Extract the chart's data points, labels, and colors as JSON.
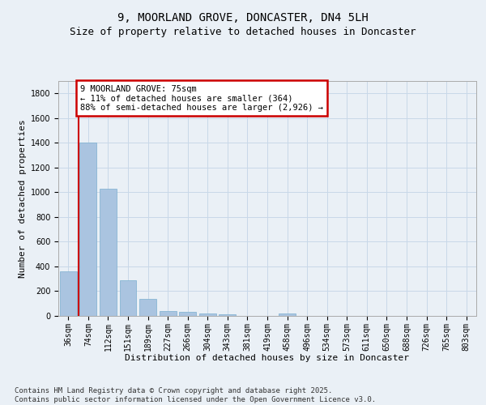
{
  "title_line1": "9, MOORLAND GROVE, DONCASTER, DN4 5LH",
  "title_line2": "Size of property relative to detached houses in Doncaster",
  "xlabel": "Distribution of detached houses by size in Doncaster",
  "ylabel": "Number of detached properties",
  "categories": [
    "36sqm",
    "74sqm",
    "112sqm",
    "151sqm",
    "189sqm",
    "227sqm",
    "266sqm",
    "304sqm",
    "343sqm",
    "381sqm",
    "419sqm",
    "458sqm",
    "496sqm",
    "534sqm",
    "573sqm",
    "611sqm",
    "650sqm",
    "688sqm",
    "726sqm",
    "765sqm",
    "803sqm"
  ],
  "values": [
    360,
    1400,
    1030,
    290,
    135,
    42,
    33,
    20,
    14,
    0,
    0,
    20,
    0,
    0,
    0,
    0,
    0,
    0,
    0,
    0,
    0
  ],
  "bar_color": "#aac4e0",
  "bar_edge_color": "#7aaed0",
  "annotation_text": "9 MOORLAND GROVE: 75sqm\n← 11% of detached houses are smaller (364)\n88% of semi-detached houses are larger (2,926) →",
  "annotation_box_color": "#ffffff",
  "annotation_box_edge_color": "#cc0000",
  "vline_color": "#cc0000",
  "grid_color": "#c8d8e8",
  "background_color": "#eaf0f6",
  "ylim": [
    0,
    1900
  ],
  "yticks": [
    0,
    200,
    400,
    600,
    800,
    1000,
    1200,
    1400,
    1600,
    1800
  ],
  "footer_text": "Contains HM Land Registry data © Crown copyright and database right 2025.\nContains public sector information licensed under the Open Government Licence v3.0.",
  "title_fontsize": 10,
  "subtitle_fontsize": 9,
  "axis_label_fontsize": 8,
  "tick_fontsize": 7,
  "annotation_fontsize": 7.5,
  "footer_fontsize": 6.5
}
